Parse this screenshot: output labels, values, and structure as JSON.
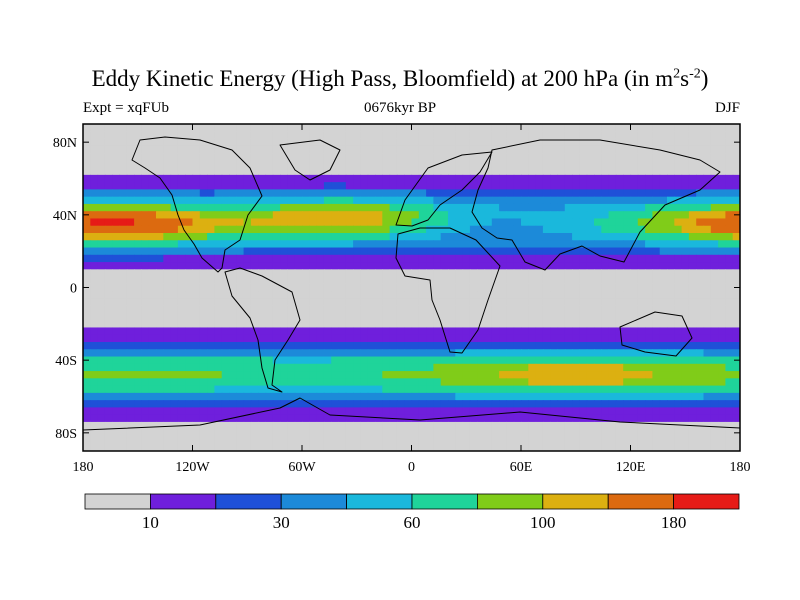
{
  "title": {
    "main": "Eddy Kinetic Energy (High Pass, Bloomfield) at 200 hPa (in m",
    "exp1": "2",
    "mid": "s",
    "exp2": "-2",
    "close": ")"
  },
  "left_string": "Expt = xqFUb",
  "center_string": "0676kyr BP",
  "right_string": "DJF",
  "chart_data": {
    "type": "heatmap",
    "title": "Eddy Kinetic Energy (High Pass, Bloomfield) at 200 hPa (in m2s-2)",
    "lon_range": [
      -180,
      180
    ],
    "lat_range": [
      -90,
      90
    ],
    "x_ticks": [
      {
        "lon": -180,
        "label": "180"
      },
      {
        "lon": -120,
        "label": "120W"
      },
      {
        "lon": -60,
        "label": "60W"
      },
      {
        "lon": 0,
        "label": "0"
      },
      {
        "lon": 60,
        "label": "60E"
      },
      {
        "lon": 120,
        "label": "120E"
      },
      {
        "lon": 180,
        "label": "180"
      }
    ],
    "y_ticks": [
      {
        "lat": 80,
        "label": "80N"
      },
      {
        "lat": 40,
        "label": "40N"
      },
      {
        "lat": 0,
        "label": "0"
      },
      {
        "lat": -40,
        "label": "40S"
      },
      {
        "lat": -80,
        "label": "80S"
      }
    ],
    "levels": [
      10,
      20,
      30,
      45,
      60,
      80,
      100,
      120,
      150,
      180
    ],
    "colorbar": {
      "colors": [
        "#d3d3d3",
        "#6f1fdc",
        "#1f50d8",
        "#1c8ad9",
        "#1ab8dc",
        "#1fd49a",
        "#80cc19",
        "#dcb011",
        "#dc6a10",
        "#e61b17"
      ],
      "labels": [
        {
          "boundary": 1,
          "value": "10"
        },
        {
          "boundary": 3,
          "value": "30"
        },
        {
          "boundary": 5,
          "value": "60"
        },
        {
          "boundary": 7,
          "value": "100"
        },
        {
          "boundary": 9,
          "value": "180"
        }
      ]
    },
    "field": {
      "north_jet": {
        "lat_center": 36,
        "base_value": 62,
        "lat_width": 11,
        "maxima": [
          {
            "lon": -150,
            "lat": 33,
            "value": 60
          },
          {
            "lon": -40,
            "lat": 40,
            "value": 55
          },
          {
            "lon": 90,
            "lat": 40,
            "value": -8
          },
          {
            "lon": 40,
            "lat": 32,
            "value": -25
          },
          {
            "lon": 175,
            "lat": 35,
            "value": 40
          }
        ]
      },
      "south_jet": {
        "lat_center": -48,
        "base_value": 78,
        "lat_width": 10,
        "maxima": [
          {
            "lon": 90,
            "lat": -48,
            "value": 35
          },
          {
            "lon": -60,
            "lat": -52,
            "value": -10
          }
        ]
      },
      "tropical_minimum": {
        "value": 6
      }
    }
  }
}
